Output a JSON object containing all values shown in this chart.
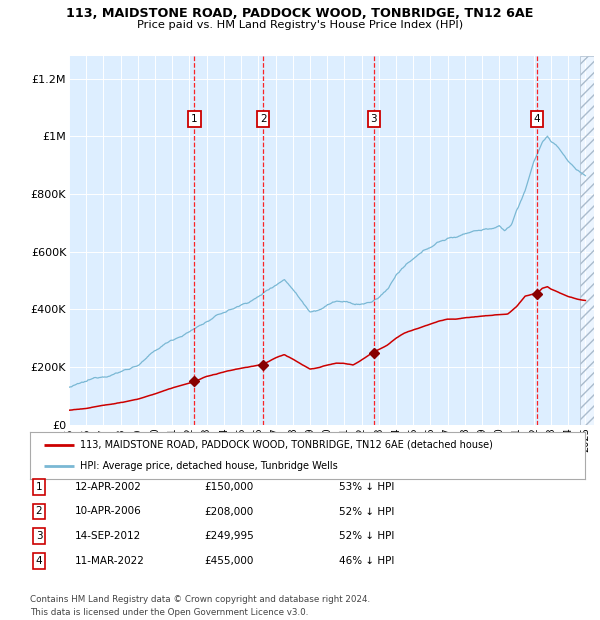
{
  "title1": "113, MAIDSTONE ROAD, PADDOCK WOOD, TONBRIDGE, TN12 6AE",
  "title2": "Price paid vs. HM Land Registry's House Price Index (HPI)",
  "xlim": [
    1995.0,
    2025.5
  ],
  "ylim": [
    0,
    1280000
  ],
  "yticks": [
    0,
    200000,
    400000,
    600000,
    800000,
    1000000,
    1200000
  ],
  "ytick_labels": [
    "£0",
    "£200K",
    "£400K",
    "£600K",
    "£800K",
    "£1M",
    "£1.2M"
  ],
  "xtick_years": [
    1995,
    1996,
    1997,
    1998,
    1999,
    2000,
    2001,
    2002,
    2003,
    2004,
    2005,
    2006,
    2007,
    2008,
    2009,
    2010,
    2011,
    2012,
    2013,
    2014,
    2015,
    2016,
    2017,
    2018,
    2019,
    2020,
    2021,
    2022,
    2023,
    2024,
    2025
  ],
  "hpi_color": "#7ab8d4",
  "price_color": "#cc0000",
  "sale_marker_color": "#880000",
  "bg_color": "#ddeeff",
  "grid_color": "#ffffff",
  "sales": [
    {
      "num": 1,
      "date": "12-APR-2002",
      "year": 2002.28,
      "price": 150000,
      "pct": "53% ↓ HPI"
    },
    {
      "num": 2,
      "date": "10-APR-2006",
      "year": 2006.28,
      "price": 208000,
      "pct": "52% ↓ HPI"
    },
    {
      "num": 3,
      "date": "14-SEP-2012",
      "year": 2012.71,
      "price": 249995,
      "pct": "52% ↓ HPI"
    },
    {
      "num": 4,
      "date": "11-MAR-2022",
      "year": 2022.19,
      "price": 455000,
      "pct": "46% ↓ HPI"
    }
  ],
  "legend_label1": "113, MAIDSTONE ROAD, PADDOCK WOOD, TONBRIDGE, TN12 6AE (detached house)",
  "legend_label2": "HPI: Average price, detached house, Tunbridge Wells",
  "table_rows": [
    [
      "1",
      "12-APR-2002",
      "£150,000",
      "53% ↓ HPI"
    ],
    [
      "2",
      "10-APR-2006",
      "£208,000",
      "52% ↓ HPI"
    ],
    [
      "3",
      "14-SEP-2012",
      "£249,995",
      "52% ↓ HPI"
    ],
    [
      "4",
      "11-MAR-2022",
      "£455,000",
      "46% ↓ HPI"
    ]
  ],
  "footnote": "Contains HM Land Registry data © Crown copyright and database right 2024.\nThis data is licensed under the Open Government Licence v3.0."
}
